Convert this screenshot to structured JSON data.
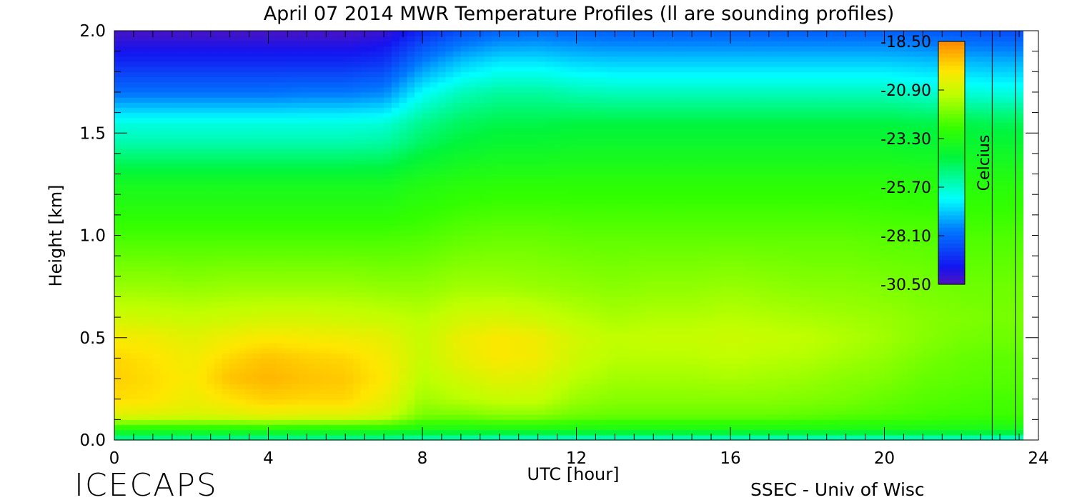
{
  "chart_data": {
    "type": "heatmap",
    "title": "April 07 2014 MWR Temperature Profiles (ll are sounding profiles)",
    "xlabel": "UTC [hour]",
    "ylabel": "Height [km]",
    "xlim": [
      0,
      24
    ],
    "ylim": [
      0,
      2.0
    ],
    "x_ticks": [
      "0",
      "4",
      "8",
      "12",
      "16",
      "20",
      "24"
    ],
    "y_ticks": [
      "0.0",
      "0.5",
      "1.0",
      "1.5",
      "2.0"
    ],
    "colorbar": {
      "label": "Celcius",
      "ticks": [
        "-18.50",
        "-20.90",
        "-23.30",
        "-25.70",
        "-28.10",
        "-30.50"
      ],
      "range": [
        -30.5,
        -18.5
      ]
    },
    "sounding_profiles_utc": [
      22.8,
      23.4
    ],
    "height_km": [
      0.0,
      0.05,
      0.12,
      0.2,
      0.3,
      0.4,
      0.5,
      0.6,
      0.75,
      1.0,
      1.25,
      1.45,
      1.55,
      1.7,
      1.85,
      2.0
    ],
    "time_utc": [
      0,
      1,
      2,
      3,
      4,
      5,
      6,
      7,
      8,
      9,
      10,
      11,
      12,
      13,
      14,
      15,
      16,
      17,
      18,
      19,
      20,
      21,
      22,
      23,
      24
    ],
    "temperature_c": [
      [
        -25.5,
        -25.5,
        -25.5,
        -25.5,
        -25.5,
        -25.5,
        -25.5,
        -25.5,
        -25.8,
        -25.8,
        -26.0,
        -26.0,
        -26.0,
        -26.0,
        -26.0,
        -26.0,
        -26.0,
        -26.0,
        -26.0,
        -26.0,
        -26.0,
        -26.0,
        -26.0,
        -26.2,
        -26.2
      ],
      [
        -23.3,
        -23.3,
        -23.3,
        -23.3,
        -23.3,
        -23.3,
        -23.3,
        -23.3,
        -23.5,
        -23.5,
        -23.5,
        -23.5,
        -23.5,
        -23.5,
        -23.5,
        -23.5,
        -23.5,
        -23.5,
        -23.5,
        -23.5,
        -23.5,
        -23.5,
        -23.5,
        -23.6,
        -23.6
      ],
      [
        -20.5,
        -20.6,
        -20.7,
        -20.6,
        -20.4,
        -20.5,
        -20.5,
        -20.8,
        -22.0,
        -22.0,
        -21.8,
        -21.8,
        -22.1,
        -22.2,
        -22.2,
        -22.2,
        -22.2,
        -22.2,
        -22.3,
        -22.4,
        -22.5,
        -22.6,
        -22.7,
        -22.7,
        -22.7
      ],
      [
        -19.8,
        -19.9,
        -20.3,
        -19.9,
        -19.6,
        -19.7,
        -19.7,
        -20.3,
        -21.5,
        -21.2,
        -21.0,
        -21.0,
        -21.6,
        -21.8,
        -21.8,
        -21.8,
        -21.8,
        -21.8,
        -21.9,
        -22.0,
        -22.2,
        -22.4,
        -22.5,
        -22.6,
        -22.6
      ],
      [
        -19.6,
        -19.8,
        -20.1,
        -19.4,
        -19.2,
        -19.4,
        -19.5,
        -20.0,
        -21.2,
        -20.8,
        -20.5,
        -20.6,
        -21.2,
        -21.5,
        -21.5,
        -21.5,
        -21.4,
        -21.5,
        -21.6,
        -21.8,
        -21.9,
        -22.2,
        -22.3,
        -22.4,
        -22.4
      ],
      [
        -19.7,
        -19.9,
        -20.2,
        -19.7,
        -19.4,
        -19.6,
        -19.7,
        -20.1,
        -21.0,
        -20.4,
        -20.0,
        -20.2,
        -20.9,
        -21.2,
        -21.2,
        -21.2,
        -21.1,
        -21.2,
        -21.3,
        -21.5,
        -21.7,
        -22.0,
        -22.2,
        -22.3,
        -22.3
      ],
      [
        -20.1,
        -20.2,
        -20.5,
        -20.2,
        -20.0,
        -20.1,
        -20.2,
        -20.4,
        -21.0,
        -20.3,
        -20.0,
        -20.2,
        -20.8,
        -21.1,
        -21.0,
        -21.0,
        -20.9,
        -21.0,
        -21.1,
        -21.3,
        -21.5,
        -21.8,
        -22.0,
        -22.1,
        -22.1
      ],
      [
        -20.8,
        -20.9,
        -21.0,
        -20.9,
        -20.8,
        -20.8,
        -20.9,
        -21.0,
        -21.2,
        -20.8,
        -20.7,
        -20.9,
        -21.2,
        -21.4,
        -21.3,
        -21.3,
        -21.2,
        -21.3,
        -21.4,
        -21.5,
        -21.6,
        -21.8,
        -21.9,
        -22.0,
        -22.0
      ],
      [
        -21.6,
        -21.6,
        -21.7,
        -21.6,
        -21.6,
        -21.6,
        -21.6,
        -21.7,
        -21.7,
        -21.5,
        -21.5,
        -21.6,
        -21.7,
        -21.8,
        -21.7,
        -21.7,
        -21.6,
        -21.7,
        -21.8,
        -21.8,
        -21.9,
        -22.0,
        -22.1,
        -22.1,
        -22.1
      ],
      [
        -22.6,
        -22.6,
        -22.6,
        -22.6,
        -22.6,
        -22.6,
        -22.6,
        -22.6,
        -22.5,
        -22.3,
        -22.2,
        -22.2,
        -22.3,
        -22.3,
        -22.3,
        -22.3,
        -22.3,
        -22.3,
        -22.3,
        -22.3,
        -22.4,
        -22.4,
        -22.5,
        -22.5,
        -22.5
      ],
      [
        -23.6,
        -23.6,
        -23.6,
        -23.6,
        -23.6,
        -23.6,
        -23.6,
        -23.6,
        -23.3,
        -23.1,
        -23.0,
        -23.0,
        -23.0,
        -23.0,
        -23.0,
        -23.0,
        -23.0,
        -23.0,
        -23.0,
        -23.0,
        -23.0,
        -23.1,
        -23.1,
        -23.1,
        -23.1
      ],
      [
        -25.4,
        -25.4,
        -25.4,
        -25.4,
        -25.4,
        -25.4,
        -25.4,
        -25.3,
        -24.6,
        -24.2,
        -24.0,
        -24.0,
        -23.9,
        -23.9,
        -23.9,
        -23.9,
        -23.9,
        -23.9,
        -23.9,
        -23.9,
        -23.9,
        -24.0,
        -24.0,
        -24.0,
        -24.0
      ],
      [
        -26.0,
        -26.0,
        -26.0,
        -26.0,
        -26.0,
        -26.0,
        -26.0,
        -25.9,
        -25.1,
        -24.6,
        -24.4,
        -24.4,
        -24.3,
        -24.3,
        -24.3,
        -24.3,
        -24.3,
        -24.3,
        -24.3,
        -24.3,
        -24.3,
        -24.4,
        -24.4,
        -24.5,
        -24.5
      ],
      [
        -28.0,
        -28.0,
        -28.0,
        -28.0,
        -28.0,
        -27.9,
        -27.9,
        -27.7,
        -26.3,
        -25.6,
        -25.3,
        -25.3,
        -25.5,
        -25.6,
        -25.6,
        -25.6,
        -25.6,
        -25.6,
        -25.6,
        -25.6,
        -25.6,
        -25.8,
        -25.9,
        -26.0,
        -26.0
      ],
      [
        -29.3,
        -29.3,
        -29.3,
        -29.3,
        -29.3,
        -29.3,
        -29.3,
        -29.1,
        -27.8,
        -27.0,
        -26.6,
        -26.6,
        -26.8,
        -26.9,
        -26.9,
        -26.9,
        -26.9,
        -26.9,
        -26.9,
        -26.9,
        -26.9,
        -27.0,
        -27.1,
        -27.2,
        -27.2
      ],
      [
        -30.4,
        -30.4,
        -30.4,
        -30.4,
        -30.4,
        -30.4,
        -30.4,
        -30.2,
        -29.3,
        -28.6,
        -28.2,
        -28.1,
        -28.2,
        -28.3,
        -28.3,
        -28.3,
        -28.3,
        -28.3,
        -28.3,
        -28.3,
        -28.3,
        -28.4,
        -28.5,
        -28.6,
        -28.6
      ]
    ]
  },
  "footer": {
    "left_logo_text": "ICECAPS",
    "right_credit": "SSEC - Univ of Wisc"
  }
}
